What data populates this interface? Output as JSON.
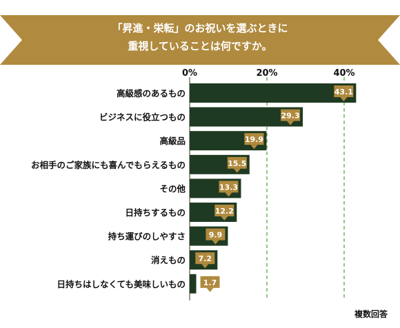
{
  "colors": {
    "banner": "#b08a3e",
    "bar": "#1f3a22",
    "label_badge": "#b08a3e",
    "gridline": "#4a9e3a",
    "text": "#111111",
    "banner_text": "#ffffff"
  },
  "chart_data": {
    "type": "bar",
    "orientation": "horizontal",
    "title": [
      "「昇進・栄転」のお祝いを選ぶときに",
      "重視していることは何ですか。"
    ],
    "xlim": [
      0,
      50
    ],
    "x_ticks": [
      {
        "value": 0,
        "label": "0%"
      },
      {
        "value": 20,
        "label": "20%"
      },
      {
        "value": 40,
        "label": "40%"
      }
    ],
    "grid": "dashed vertical at 20% and 40%",
    "categories": [
      "高級感のあるもの",
      "ビジネスに役立つもの",
      "高級品",
      "お相手のご家族にも喜んでもらえるもの",
      "その他",
      "日持ちするもの",
      "持ち運びのしやすさ",
      "消えもの",
      "日持ちはしなくても美味しいもの"
    ],
    "values": [
      43.1,
      29.3,
      19.9,
      15.5,
      13.3,
      12.2,
      9.9,
      7.2,
      1.7
    ],
    "value_labels": [
      "43.1",
      "29.3",
      "19.9",
      "15.5",
      "13.3",
      "12.2",
      "9.9",
      "7.2",
      "1.7"
    ],
    "note": "複数回答"
  }
}
